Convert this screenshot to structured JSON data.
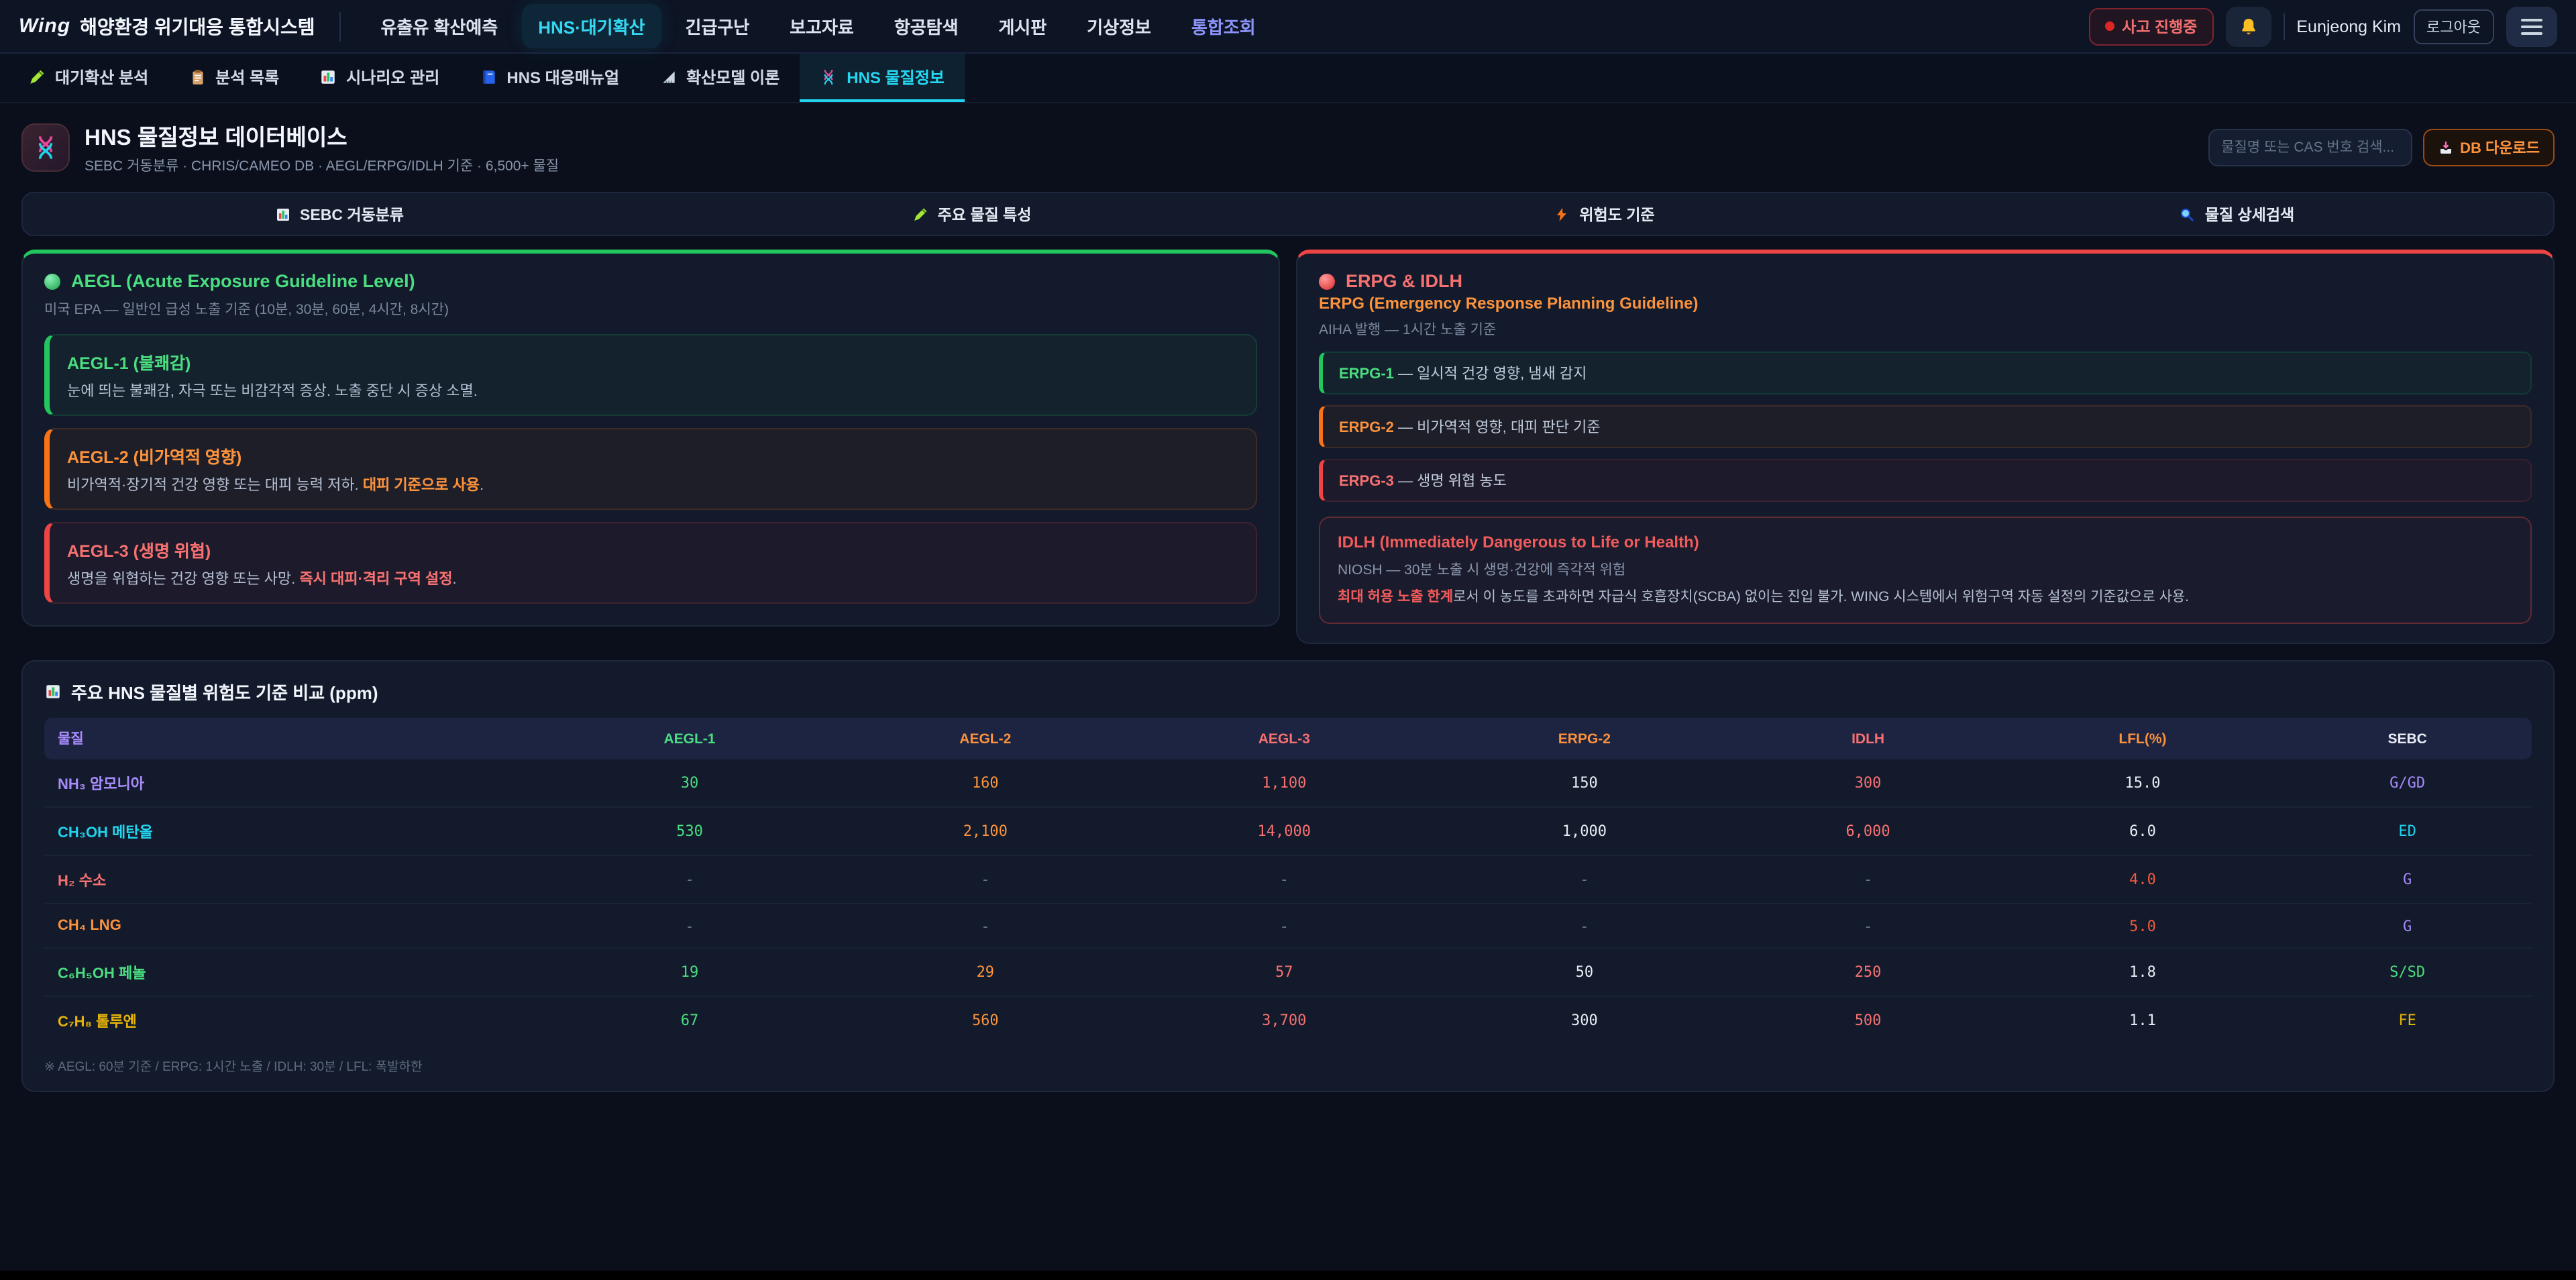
{
  "colors": {
    "accent_cyan": "#22d3ee",
    "accent_purple": "#a78bfa",
    "green": "#4ade80",
    "orange": "#fb923c",
    "red": "#f87171",
    "yellow": "#e8b409"
  },
  "navbar": {
    "logo": "Wing",
    "system_title": "해양환경 위기대응 통합시스템",
    "menu": [
      {
        "label": "유출유 확산예측"
      },
      {
        "label": "HNS·대기확산",
        "active": true
      },
      {
        "label": "긴급구난"
      },
      {
        "label": "보고자료"
      },
      {
        "label": "항공탐색"
      },
      {
        "label": "게시판"
      },
      {
        "label": "기상정보"
      },
      {
        "label": "통합조회",
        "accent": true
      }
    ],
    "incident_badge": "사고 진행중",
    "user_name": "Eunjeong Kim",
    "logout_label": "로그아웃"
  },
  "subtabs": [
    {
      "icon": "pencil-icon",
      "label": "대기확산 분석"
    },
    {
      "icon": "clipboard-icon",
      "label": "분석 목록"
    },
    {
      "icon": "bar-chart-icon",
      "label": "시나리오 관리"
    },
    {
      "icon": "book-icon",
      "label": "HNS 대응매뉴얼"
    },
    {
      "icon": "ruler-icon",
      "label": "확산모델 이론"
    },
    {
      "icon": "dna-icon",
      "label": "HNS 물질정보",
      "active": true
    }
  ],
  "page_header": {
    "icon": "dna-icon",
    "title": "HNS 물질정보 데이터베이스",
    "subtitle": "SEBC 거동분류 · CHRIS/CAMEO DB · AEGL/ERPG/IDLH 기준 · 6,500+ 물질",
    "search_placeholder": "물질명 또는 CAS 번호 검색...",
    "download_label": "DB 다운로드"
  },
  "section_tabs": [
    {
      "icon": "bar-chart-icon",
      "label": "SEBC 거동분류"
    },
    {
      "icon": "pencil-icon",
      "label": "주요 물질 특성"
    },
    {
      "icon": "lightning-icon",
      "label": "위험도 기준"
    },
    {
      "icon": "search-icon",
      "label": "물질 상세검색"
    }
  ],
  "aegl_panel": {
    "title": "AEGL (Acute Exposure Guideline Level)",
    "subtitle": "미국 EPA — 일반인 급성 노출 기준 (10분, 30분, 60분, 4시간, 8시간)",
    "items": [
      {
        "tone": "green",
        "title": "AEGL-1 (불쾌감)",
        "desc": "눈에 띄는 불쾌감, 자극 또는 비감각적 증상. 노출 중단 시 증상 소멸.",
        "strong": "",
        "tail": ""
      },
      {
        "tone": "orange",
        "title": "AEGL-2 (비가역적 영향)",
        "desc": "비가역적·장기적 건강 영향 또는 대피 능력 저하. ",
        "strong": "대피 기준으로 사용",
        "tail": "."
      },
      {
        "tone": "red",
        "title": "AEGL-3 (생명 위협)",
        "desc": "생명을 위협하는 건강 영향 또는 사망. ",
        "strong": "즉시 대피·격리 구역 설정",
        "tail": "."
      }
    ]
  },
  "erpg_panel": {
    "title": "ERPG & IDLH",
    "erpg_heading": "ERPG (Emergency Response Planning Guideline)",
    "erpg_subtitle": "AIHA 발행 — 1시간 노출 기준",
    "items": [
      {
        "tone": "green",
        "label": "ERPG-1",
        "text": " — 일시적 건강 영향, 냄새 감지"
      },
      {
        "tone": "orange",
        "label": "ERPG-2",
        "text": " — 비가역적 영향, 대피 판단 기준"
      },
      {
        "tone": "red",
        "label": "ERPG-3",
        "text": " — 생명 위협 농도"
      }
    ],
    "idlh": {
      "title": "IDLH (Immediately Dangerous to Life or Health)",
      "line1": "NIOSH — 30분 노출 시 생명·건강에 즉각적 위험",
      "strong": "최대 허용 노출 한계",
      "line2": "로서 이 농도를 초과하면 자급식 호흡장치(SCBA) 없이는 진입 불가. WING 시스템에서 위험구역 자동 설정의 기준값으로 사용."
    }
  },
  "table": {
    "title": "주요 HNS 물질별 위험도 기준 비교 (ppm)",
    "columns": [
      {
        "label": "물질",
        "tone": "purple"
      },
      {
        "label": "AEGL-1",
        "tone": "green"
      },
      {
        "label": "AEGL-2",
        "tone": "orange"
      },
      {
        "label": "AEGL-3",
        "tone": "red"
      },
      {
        "label": "ERPG-2",
        "tone": "orange"
      },
      {
        "label": "IDLH",
        "tone": "red"
      },
      {
        "label": "LFL(%)",
        "tone": "orange"
      },
      {
        "label": "SEBC",
        "tone": "white"
      }
    ],
    "rows": [
      {
        "name": "NH₃ 암모니아",
        "tone": "purple",
        "cells": [
          {
            "v": "30",
            "t": "green"
          },
          {
            "v": "160",
            "t": "orange"
          },
          {
            "v": "1,100",
            "t": "red"
          },
          {
            "v": "150",
            "t": "white"
          },
          {
            "v": "300",
            "t": "red"
          },
          {
            "v": "15.0",
            "t": "white"
          },
          {
            "v": "G/GD",
            "t": "purple"
          }
        ]
      },
      {
        "name": "CH₃OH 메탄올",
        "tone": "cyan",
        "cells": [
          {
            "v": "530",
            "t": "green"
          },
          {
            "v": "2,100",
            "t": "orange"
          },
          {
            "v": "14,000",
            "t": "red"
          },
          {
            "v": "1,000",
            "t": "white"
          },
          {
            "v": "6,000",
            "t": "red"
          },
          {
            "v": "6.0",
            "t": "white"
          },
          {
            "v": "ED",
            "t": "cyan"
          }
        ]
      },
      {
        "name": "H₂ 수소",
        "tone": "red",
        "cells": [
          {
            "v": "-",
            "t": "gray"
          },
          {
            "v": "-",
            "t": "gray"
          },
          {
            "v": "-",
            "t": "gray"
          },
          {
            "v": "-",
            "t": "gray"
          },
          {
            "v": "-",
            "t": "gray"
          },
          {
            "v": "4.0",
            "t": "orangered"
          },
          {
            "v": "G",
            "t": "purple"
          }
        ]
      },
      {
        "name": "CH₄ LNG",
        "tone": "orange",
        "cells": [
          {
            "v": "-",
            "t": "gray"
          },
          {
            "v": "-",
            "t": "gray"
          },
          {
            "v": "-",
            "t": "gray"
          },
          {
            "v": "-",
            "t": "gray"
          },
          {
            "v": "-",
            "t": "gray"
          },
          {
            "v": "5.0",
            "t": "orangered"
          },
          {
            "v": "G",
            "t": "purple"
          }
        ]
      },
      {
        "name": "C₆H₅OH 페놀",
        "tone": "green",
        "cells": [
          {
            "v": "19",
            "t": "green"
          },
          {
            "v": "29",
            "t": "orange"
          },
          {
            "v": "57",
            "t": "red"
          },
          {
            "v": "50",
            "t": "white"
          },
          {
            "v": "250",
            "t": "red"
          },
          {
            "v": "1.8",
            "t": "white"
          },
          {
            "v": "S/SD",
            "t": "green"
          }
        ]
      },
      {
        "name": "C₇H₈ 톨루엔",
        "tone": "yellow",
        "cells": [
          {
            "v": "67",
            "t": "green"
          },
          {
            "v": "560",
            "t": "orange"
          },
          {
            "v": "3,700",
            "t": "red"
          },
          {
            "v": "300",
            "t": "white"
          },
          {
            "v": "500",
            "t": "red"
          },
          {
            "v": "1.1",
            "t": "white"
          },
          {
            "v": "FE",
            "t": "yellow"
          }
        ]
      }
    ],
    "footnote": "※ AEGL: 60분 기준 / ERPG: 1시간 노출 / IDLH: 30분 / LFL: 폭발하한"
  }
}
